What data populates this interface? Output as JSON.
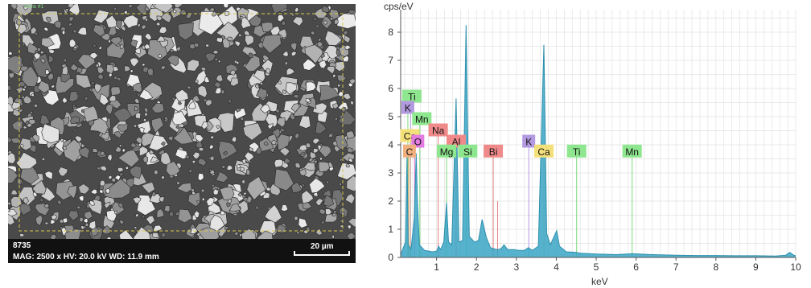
{
  "sem": {
    "corner_text": "Area #1",
    "sample_id": "8735",
    "params": "MAG: 2500 x  HV: 20.0 kV  WD: 11.9 mm",
    "scale_label": "20 µm"
  },
  "chart_data": {
    "type": "line",
    "title": "",
    "xlabel": "keV",
    "ylabel": "cps/eV",
    "xlim": [
      0.1,
      10
    ],
    "ylim": [
      0,
      8.8
    ],
    "xticks": [
      1,
      2,
      3,
      4,
      5,
      6,
      7,
      8,
      9,
      10
    ],
    "yticks": [
      0,
      1,
      2,
      3,
      4,
      5,
      6,
      7,
      8
    ],
    "grid": true,
    "series": [
      {
        "name": "",
        "color": "#3aa6c4",
        "points": [
          [
            0.1,
            0.1
          ],
          [
            0.22,
            0.55
          ],
          [
            0.26,
            3.6
          ],
          [
            0.29,
            0.45
          ],
          [
            0.36,
            0.3
          ],
          [
            0.44,
            1.4
          ],
          [
            0.49,
            3.7
          ],
          [
            0.52,
            2.0
          ],
          [
            0.57,
            0.45
          ],
          [
            0.7,
            0.25
          ],
          [
            0.9,
            0.2
          ],
          [
            1.0,
            0.22
          ],
          [
            1.05,
            0.4
          ],
          [
            1.1,
            0.28
          ],
          [
            1.18,
            0.55
          ],
          [
            1.25,
            1.95
          ],
          [
            1.3,
            0.55
          ],
          [
            1.38,
            0.45
          ],
          [
            1.49,
            5.65
          ],
          [
            1.56,
            0.55
          ],
          [
            1.65,
            0.6
          ],
          [
            1.74,
            8.25
          ],
          [
            1.82,
            0.75
          ],
          [
            1.95,
            0.55
          ],
          [
            2.05,
            0.6
          ],
          [
            2.14,
            1.35
          ],
          [
            2.25,
            0.7
          ],
          [
            2.35,
            0.35
          ],
          [
            2.45,
            0.3
          ],
          [
            2.55,
            0.28
          ],
          [
            2.62,
            0.32
          ],
          [
            2.69,
            0.45
          ],
          [
            2.78,
            0.28
          ],
          [
            2.95,
            0.28
          ],
          [
            3.05,
            0.25
          ],
          [
            3.2,
            0.25
          ],
          [
            3.3,
            0.35
          ],
          [
            3.4,
            0.25
          ],
          [
            3.55,
            0.4
          ],
          [
            3.69,
            7.55
          ],
          [
            3.76,
            0.85
          ],
          [
            3.85,
            0.45
          ],
          [
            4.01,
            0.95
          ],
          [
            4.08,
            0.4
          ],
          [
            4.25,
            0.2
          ],
          [
            4.51,
            0.18
          ],
          [
            4.6,
            0.15
          ],
          [
            5.0,
            0.12
          ],
          [
            5.5,
            0.1
          ],
          [
            5.9,
            0.13
          ],
          [
            6.4,
            0.1
          ],
          [
            7.0,
            0.08
          ],
          [
            7.5,
            0.07
          ],
          [
            8.0,
            0.07
          ],
          [
            8.5,
            0.06
          ],
          [
            9.0,
            0.06
          ],
          [
            9.5,
            0.05
          ],
          [
            9.75,
            0.08
          ],
          [
            9.85,
            0.18
          ],
          [
            9.95,
            0.08
          ],
          [
            10.0,
            0.06
          ]
        ]
      }
    ],
    "markers": [
      {
        "x": 0.28,
        "h": 5.7,
        "color": "#7bd97b"
      },
      {
        "x": 0.3,
        "h": 3.9,
        "color": "#e8a070"
      },
      {
        "x": 0.35,
        "h": 5.2,
        "color": "#b39ae0"
      },
      {
        "x": 0.34,
        "h": 4.3,
        "color": "#e0c080"
      },
      {
        "x": 0.45,
        "h": 4.2,
        "color": "#e070d0"
      },
      {
        "x": 0.58,
        "h": 4.8,
        "color": "#7bd97b"
      },
      {
        "x": 1.04,
        "h": 4.5,
        "color": "#e88080"
      },
      {
        "x": 1.25,
        "h": 3.8,
        "color": "#7bd97b"
      },
      {
        "x": 1.49,
        "h": 4.1,
        "color": "#e88080"
      },
      {
        "x": 1.74,
        "h": 3.8,
        "color": "#7bd97b"
      },
      {
        "x": 2.42,
        "h": 3.8,
        "color": "#e88080"
      },
      {
        "x": 2.53,
        "h": 2.0,
        "color": "#e88080"
      },
      {
        "x": 3.31,
        "h": 4.1,
        "color": "#b39ae0"
      },
      {
        "x": 3.69,
        "h": 3.8,
        "color": "#e0c080"
      },
      {
        "x": 4.51,
        "h": 3.8,
        "color": "#7bd97b"
      },
      {
        "x": 5.9,
        "h": 3.8,
        "color": "#7bd97b"
      }
    ],
    "element_labels": [
      {
        "text": "Ti",
        "x": 0.38,
        "y": 5.7,
        "bg": "#8ee68e"
      },
      {
        "text": "K",
        "x": 0.28,
        "y": 5.3,
        "bg": "#b39ae0"
      },
      {
        "text": "Mn",
        "x": 0.63,
        "y": 4.9,
        "bg": "#8ee68e"
      },
      {
        "text": "Na",
        "x": 1.04,
        "y": 4.5,
        "bg": "#f08a8a"
      },
      {
        "text": "Ca",
        "x": 0.33,
        "y": 4.3,
        "bg": "#f3e07a"
      },
      {
        "text": "O",
        "x": 0.53,
        "y": 4.1,
        "bg": "#e27be0"
      },
      {
        "text": "Al",
        "x": 1.49,
        "y": 4.1,
        "bg": "#f08a8a"
      },
      {
        "text": "K",
        "x": 3.31,
        "y": 4.1,
        "bg": "#b39ae0"
      },
      {
        "text": "C",
        "x": 0.32,
        "y": 3.75,
        "bg": "#f0b080"
      },
      {
        "text": "Mg",
        "x": 1.25,
        "y": 3.75,
        "bg": "#8ee68e"
      },
      {
        "text": "Si",
        "x": 1.78,
        "y": 3.75,
        "bg": "#8ee68e"
      },
      {
        "text": "Bi",
        "x": 2.42,
        "y": 3.75,
        "bg": "#f08a8a"
      },
      {
        "text": "Ca",
        "x": 3.69,
        "y": 3.75,
        "bg": "#f3e07a"
      },
      {
        "text": "Ti",
        "x": 4.51,
        "y": 3.75,
        "bg": "#8ee68e"
      },
      {
        "text": "Mn",
        "x": 5.9,
        "y": 3.75,
        "bg": "#8ee68e"
      }
    ]
  }
}
